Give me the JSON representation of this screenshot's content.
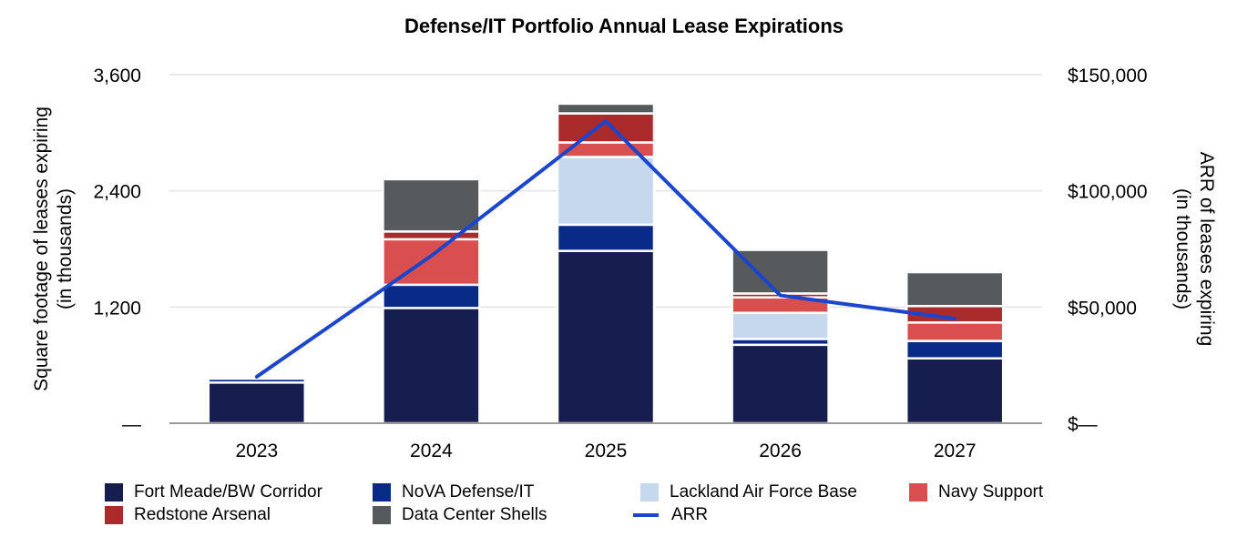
{
  "chart_data": {
    "type": "bar",
    "stacked": true,
    "title": "Defense/IT Portfolio Annual Lease Expirations",
    "ylabel_left": [
      "Square footage of leases expiring",
      "(in thousands)"
    ],
    "ylabel_right": [
      "ARR of leases expiring",
      "(in thousands)"
    ],
    "categories": [
      "2023",
      "2024",
      "2025",
      "2026",
      "2027"
    ],
    "ylim_left": [
      0,
      3600
    ],
    "ylim_right": [
      0,
      150000
    ],
    "left_ticks": [
      {
        "value": 0,
        "label": "—"
      },
      {
        "value": 1200,
        "label": "1,200"
      },
      {
        "value": 2400,
        "label": "2,400"
      },
      {
        "value": 3600,
        "label": "3,600"
      }
    ],
    "right_ticks": [
      {
        "value": 0,
        "label": "$—"
      },
      {
        "value": 50000,
        "label": "$50,000"
      },
      {
        "value": 100000,
        "label": "$100,000"
      },
      {
        "value": 150000,
        "label": "$150,000"
      }
    ],
    "series": [
      {
        "name": "Fort Meade/BW Corridor",
        "color": "#161e4f",
        "values": [
          420,
          1190,
          1780,
          810,
          670
        ]
      },
      {
        "name": "NoVA Defense/IT",
        "color": "#0a2a88",
        "values": [
          40,
          240,
          270,
          60,
          180
        ]
      },
      {
        "name": "Lackland Air Force Base",
        "color": "#c5d8ee",
        "values": [
          0,
          0,
          700,
          270,
          0
        ]
      },
      {
        "name": "Navy Support",
        "color": "#d94f4f",
        "values": [
          0,
          470,
          150,
          160,
          190
        ]
      },
      {
        "name": "Redstone Arsenal",
        "color": "#ab2a2c",
        "values": [
          0,
          80,
          300,
          40,
          170
        ]
      },
      {
        "name": "Data Center Shells",
        "color": "#565a5c",
        "values": [
          0,
          540,
          100,
          450,
          350
        ]
      }
    ],
    "line_series": {
      "name": "ARR",
      "color": "#1b45cc",
      "axis": "right",
      "values": [
        20000,
        72000,
        130000,
        55000,
        45000
      ]
    },
    "legend_position": "bottom",
    "grid": true
  }
}
